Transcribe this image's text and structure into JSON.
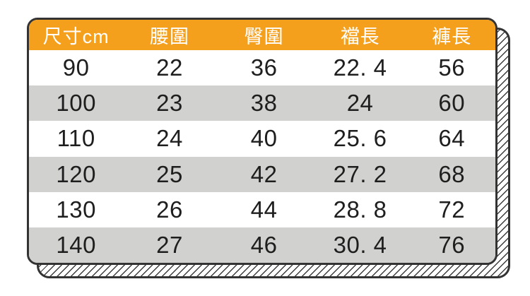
{
  "table": {
    "columns": [
      "尺寸cm",
      "腰圍",
      "臀圍",
      "襠長",
      "褲長"
    ],
    "rows": [
      {
        "cells": [
          "90",
          "22",
          "36",
          "22. 4",
          "56"
        ]
      },
      {
        "cells": [
          "100",
          "23",
          "38",
          "24",
          "60"
        ]
      },
      {
        "cells": [
          "110",
          "24",
          "40",
          "25. 6",
          "64"
        ]
      },
      {
        "cells": [
          "120",
          "25",
          "42",
          "27. 2",
          "68"
        ]
      },
      {
        "cells": [
          "130",
          "26",
          "44",
          "28. 8",
          "72"
        ]
      },
      {
        "cells": [
          "140",
          "27",
          "46",
          "30. 4",
          "76"
        ]
      }
    ],
    "colors": {
      "header_bg": "#F5A01D",
      "header_text": "#FFFFFF",
      "row_alt_bg": "#D1D1CF",
      "border": "#333333",
      "text": "#1E1E1E"
    }
  },
  "chart_data": {
    "type": "table",
    "title": "",
    "columns": [
      "尺寸cm",
      "腰圍",
      "臀圍",
      "襠長",
      "褲長"
    ],
    "rows": [
      [
        90,
        22,
        36,
        22.4,
        56
      ],
      [
        100,
        23,
        38,
        24,
        60
      ],
      [
        110,
        24,
        40,
        25.6,
        64
      ],
      [
        120,
        25,
        42,
        27.2,
        68
      ],
      [
        130,
        26,
        44,
        28.8,
        72
      ],
      [
        140,
        27,
        46,
        30.4,
        76
      ]
    ]
  }
}
